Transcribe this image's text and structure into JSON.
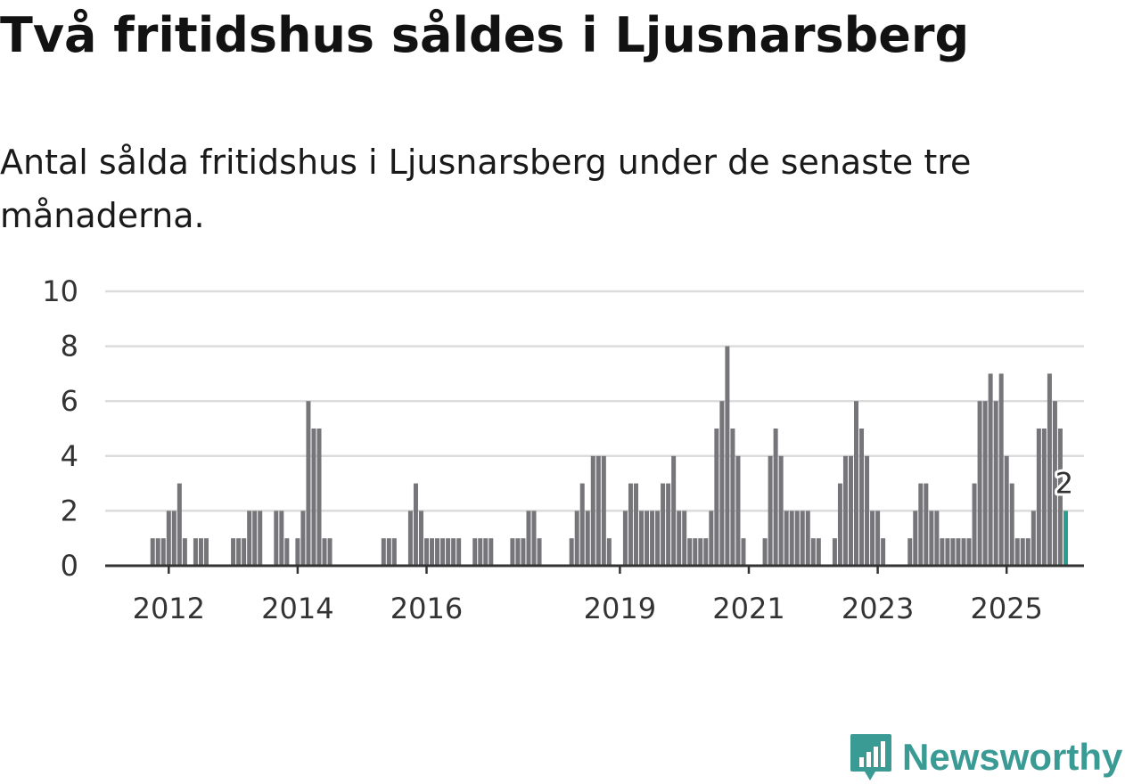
{
  "title": "Två fritidshus såldes i Ljusnarsberg",
  "subtitle": "Antal sålda fritidshus i Ljusnarsberg under de senaste tre månaderna.",
  "brand": {
    "name": "Newsworthy",
    "color": "#3a9a94",
    "icon": "newsworthy-logo-icon"
  },
  "colors": {
    "bar": "#76767a",
    "highlight": "#2a9d8f",
    "grid": "#dcdcdc",
    "axis": "#333333"
  },
  "chart_data": {
    "type": "bar",
    "title": "Två fritidshus såldes i Ljusnarsberg",
    "xlabel": "",
    "ylabel": "",
    "ylim": [
      0,
      10
    ],
    "yticks": [
      0,
      2,
      4,
      6,
      8,
      10
    ],
    "xticks": [
      "2012",
      "2014",
      "2016",
      "2019",
      "2021",
      "2023",
      "2025"
    ],
    "grid": true,
    "annotation": {
      "label": "2",
      "target": "last bar"
    },
    "series": [
      {
        "values": [
          0,
          0,
          0,
          0,
          0,
          0,
          0,
          0,
          0,
          1,
          1,
          1,
          2,
          2,
          3,
          1,
          0,
          1,
          1,
          1,
          0,
          0,
          0,
          0,
          1,
          1,
          1,
          2,
          2,
          2,
          0,
          0,
          2,
          2,
          1,
          0,
          1,
          2,
          6,
          5,
          5,
          1,
          1,
          0,
          0,
          0,
          0,
          0,
          0,
          0,
          0,
          0,
          1,
          1,
          1,
          0,
          0,
          2,
          3,
          2,
          1,
          1,
          1,
          1,
          1,
          1,
          1,
          0,
          0,
          1,
          1,
          1,
          1,
          0,
          0,
          0,
          1,
          1,
          1,
          2,
          2,
          1,
          0,
          0,
          0,
          0,
          0,
          1,
          2,
          3,
          2,
          4,
          4,
          4,
          1,
          0,
          0,
          2,
          3,
          3,
          2,
          2,
          2,
          2,
          3,
          3,
          4,
          2,
          2,
          1,
          1,
          1,
          1,
          2,
          5,
          6,
          8,
          5,
          4,
          1,
          0,
          0,
          0,
          1,
          4,
          5,
          4,
          2,
          2,
          2,
          2,
          2,
          1,
          1,
          0,
          0,
          1,
          3,
          4,
          4,
          6,
          5,
          4,
          2,
          2,
          1,
          0,
          0,
          0,
          0,
          1,
          2,
          3,
          3,
          2,
          2,
          1,
          1,
          1,
          1,
          1,
          1,
          3,
          6,
          6,
          7,
          6,
          7,
          4,
          3,
          1,
          1,
          1,
          2,
          5,
          5,
          7,
          6,
          5,
          2
        ]
      }
    ]
  }
}
